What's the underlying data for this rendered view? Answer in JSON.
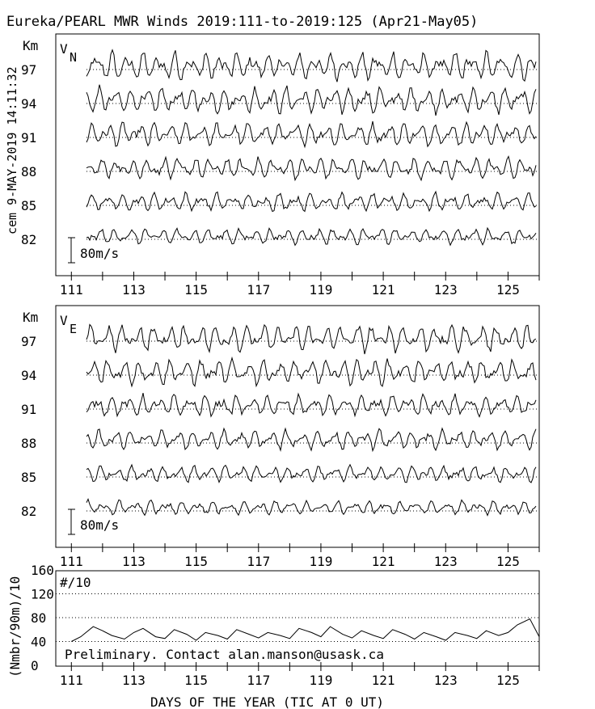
{
  "title": "Eureka/PEARL MWR Winds 2019:111-to-2019:125 (Apr21-May05)",
  "side_label": "cem 9-MAY-2019 14:11:32",
  "xlabel": "DAYS OF THE YEAR (TIC AT 0 UT)",
  "chart_data": [
    {
      "type": "line",
      "name": "north_wind_panel",
      "component_label": "V",
      "component_sub": "N",
      "unit_label": "Km",
      "y_ticks": [
        "97",
        "94",
        "91",
        "88",
        "85",
        "82"
      ],
      "scale_bar": "80m/s",
      "x_ticks": [
        "111",
        "113",
        "115",
        "117",
        "119",
        "121",
        "123",
        "125"
      ],
      "xlim": [
        110.5,
        126
      ],
      "heights_km": [
        82,
        85,
        88,
        91,
        94,
        97
      ]
    },
    {
      "type": "line",
      "name": "east_wind_panel",
      "component_label": "V",
      "component_sub": "E",
      "unit_label": "Km",
      "y_ticks": [
        "97",
        "94",
        "91",
        "88",
        "85",
        "82"
      ],
      "scale_bar": "80m/s",
      "x_ticks": [
        "111",
        "113",
        "115",
        "117",
        "119",
        "121",
        "123",
        "125"
      ],
      "xlim": [
        110.5,
        126
      ],
      "heights_km": [
        82,
        85,
        88,
        91,
        94,
        97
      ]
    },
    {
      "type": "line",
      "name": "count_panel",
      "ylabel": "(Nmbr/90m)/10",
      "panel_label": "#/10",
      "y_ticks": [
        "160",
        "120",
        "80",
        "40",
        "0"
      ],
      "ylim": [
        0,
        160
      ],
      "note": "Preliminary. Contact alan.manson@usask.ca",
      "x_ticks": [
        "111",
        "113",
        "115",
        "117",
        "119",
        "121",
        "123",
        "125"
      ],
      "xlim": [
        110.5,
        126
      ],
      "series": [
        {
          "x": [
            111,
            111.3,
            111.7,
            112,
            112.3,
            112.7,
            113,
            113.3,
            113.7,
            114,
            114.3,
            114.7,
            115,
            115.3,
            115.7,
            116,
            116.3,
            116.7,
            117,
            117.3,
            117.7,
            118,
            118.3,
            118.7,
            119,
            119.3,
            119.7,
            120,
            120.3,
            120.7,
            121,
            121.3,
            121.7,
            122,
            122.3,
            122.7,
            123,
            123.3,
            123.7,
            124,
            124.3,
            124.7,
            125,
            125.3,
            125.7,
            126
          ],
          "values": [
            40,
            48,
            65,
            58,
            50,
            44,
            55,
            62,
            48,
            45,
            60,
            52,
            42,
            55,
            50,
            44,
            60,
            52,
            46,
            55,
            50,
            45,
            62,
            55,
            48,
            65,
            52,
            46,
            58,
            50,
            45,
            60,
            52,
            44,
            55,
            48,
            42,
            55,
            50,
            45,
            58,
            50,
            55,
            68,
            78,
            48
          ]
        }
      ]
    }
  ]
}
